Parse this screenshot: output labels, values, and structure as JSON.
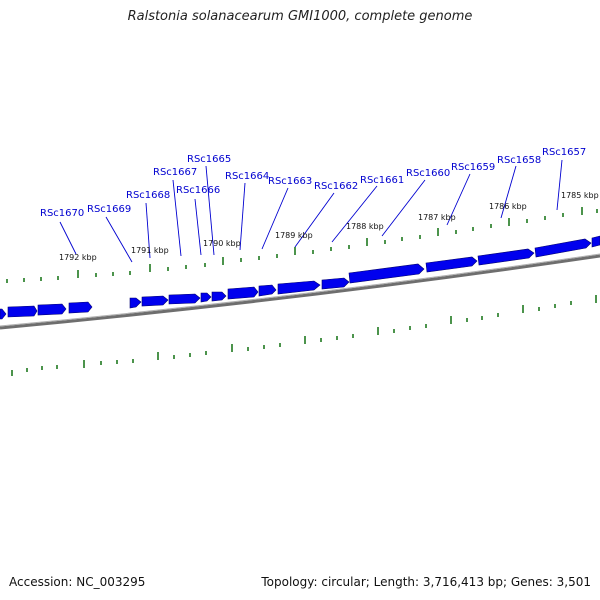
{
  "title": "Ralstonia solanacearum GMI1000, complete genome",
  "footer": {
    "accession": "Accession: NC_003295",
    "summary": "Topology: circular; Length: 3,716,413 bp; Genes: 3,501"
  },
  "colors": {
    "gene": "#0000ee",
    "gene_dark": "#000080",
    "tick": "#1f7a1f",
    "backbone": "#777777",
    "label": "#0000d0"
  },
  "gene_labels": [
    "RSc1670",
    "RSc1669",
    "RSc1668",
    "RSc1667",
    "RSc1666",
    "RSc1665",
    "RSc1664",
    "RSc1663",
    "RSc1662",
    "RSc1661",
    "RSc1660",
    "RSc1659",
    "RSc1658",
    "RSc1657"
  ],
  "kbp_labels": [
    "1792 kbp",
    "1791 kbp",
    "1790 kbp",
    "1789 kbp",
    "1788 kbp",
    "1787 kbp",
    "1786 kbp",
    "1785 kbp"
  ]
}
